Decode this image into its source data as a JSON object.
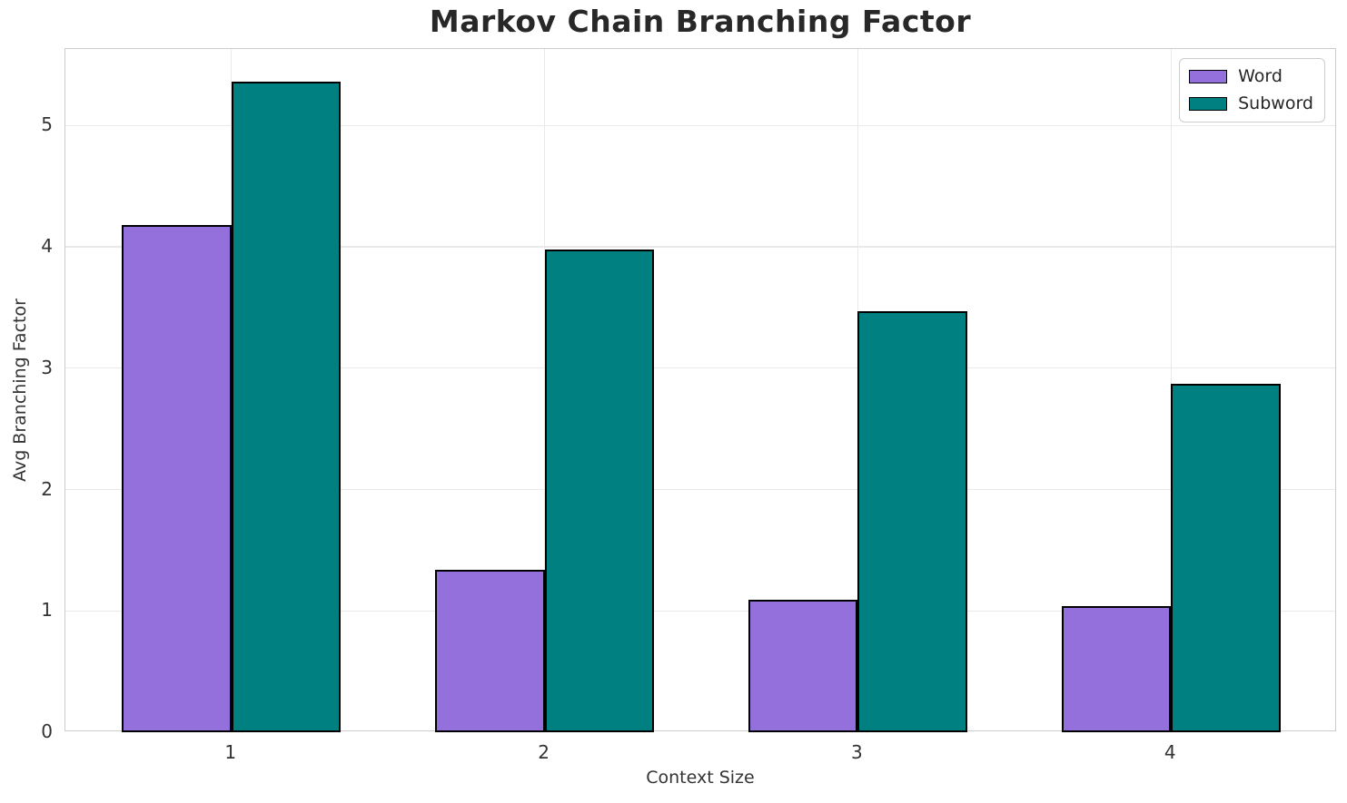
{
  "chart_data": {
    "type": "bar",
    "title": "Markov Chain Branching Factor",
    "xlabel": "Context Size",
    "ylabel": "Avg Branching Factor",
    "categories": [
      "1",
      "2",
      "3",
      "4"
    ],
    "series": [
      {
        "name": "Word",
        "color": "#9370DB",
        "values": [
          4.18,
          1.34,
          1.09,
          1.04
        ]
      },
      {
        "name": "Subword",
        "color": "#008080",
        "values": [
          5.36,
          3.98,
          3.47,
          2.87
        ]
      }
    ],
    "bar_edge_color": "#000000",
    "bar_width": 0.35,
    "y_ticks": [
      0,
      1,
      2,
      3,
      4,
      5
    ],
    "ylim": [
      0,
      5.63
    ],
    "xlim": [
      0.47,
      4.53
    ],
    "grid": true,
    "legend_position": "upper right",
    "style_colors": {
      "grid": "#e9e9e9",
      "spine": "#cccccc",
      "text": "#333333",
      "title_text": "#282828"
    }
  }
}
